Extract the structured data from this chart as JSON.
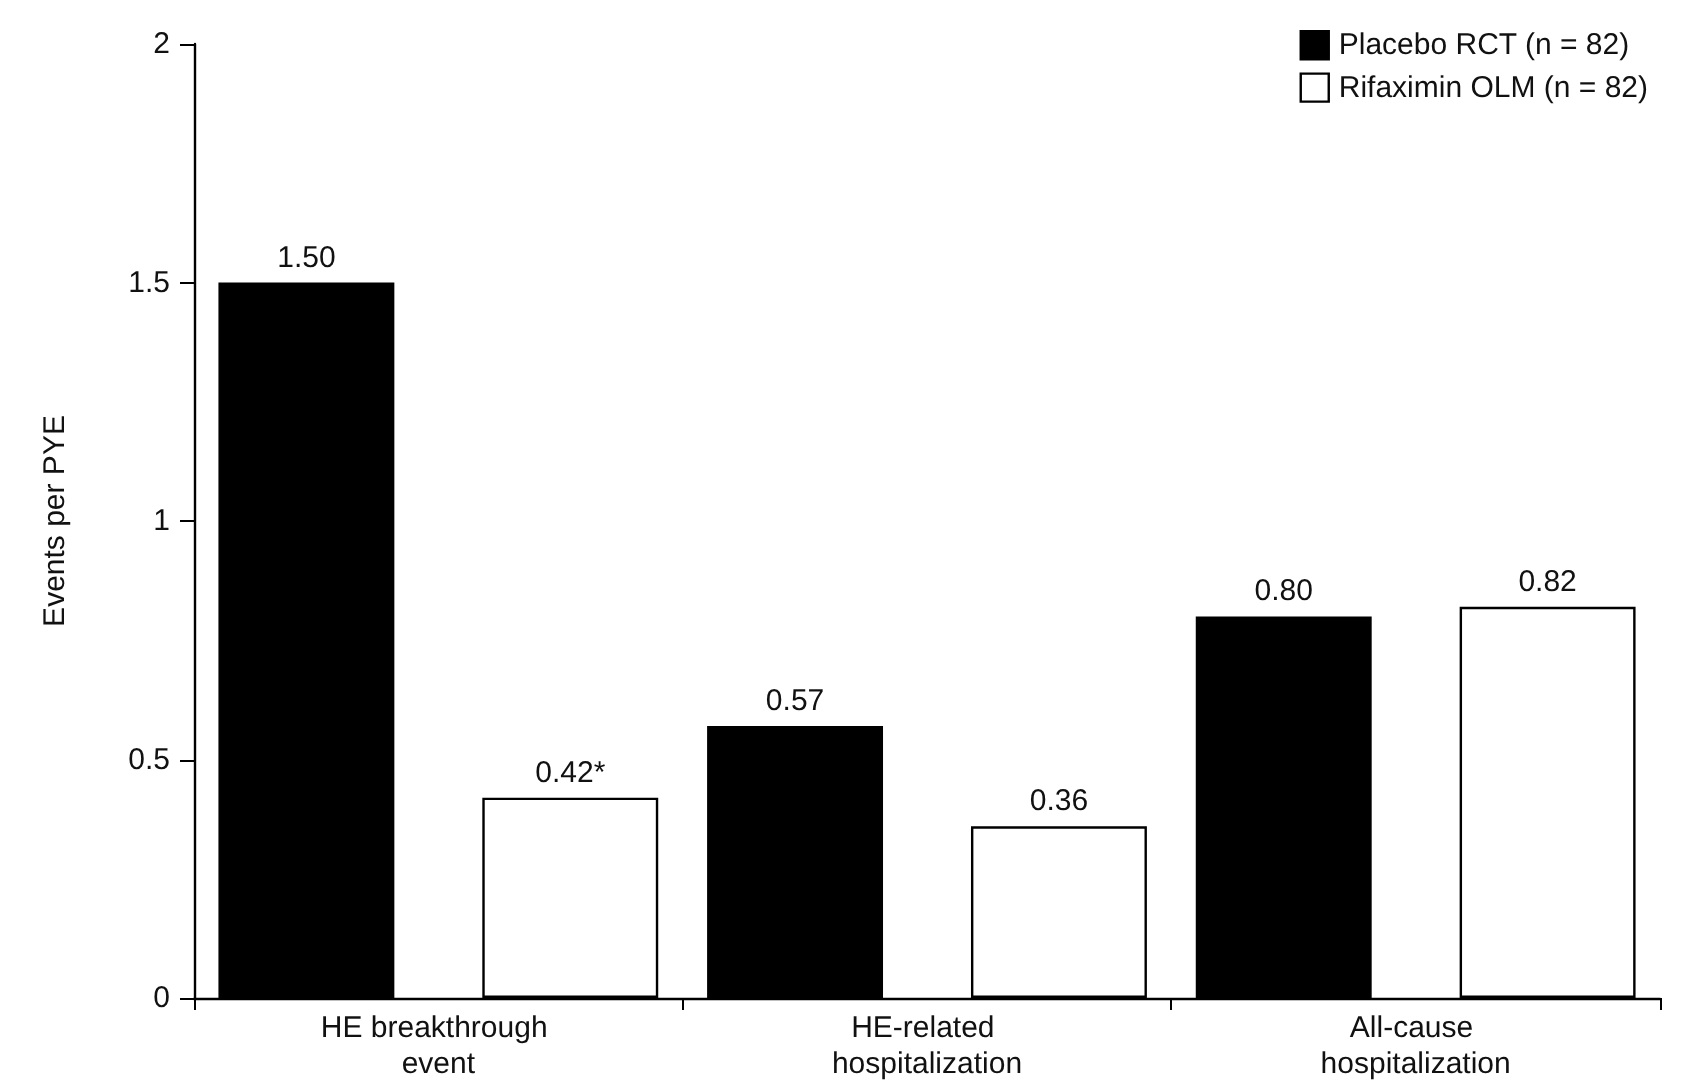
{
  "chart_data": {
    "type": "bar",
    "ylabel": "Events per PYE",
    "categories": [
      "HE breakthrough event",
      "HE-related hospitalization",
      "All-cause hospitalization"
    ],
    "series": [
      {
        "name": "Placebo RCT (n = 82)",
        "color": "#000000",
        "values": [
          1.5,
          0.57,
          0.8
        ],
        "value_labels": [
          "1.50",
          "0.57",
          "0.80"
        ]
      },
      {
        "name": "Rifaximin OLM (n = 82)",
        "color": "#ffffff",
        "values": [
          0.42,
          0.36,
          0.82
        ],
        "value_labels": [
          "0.42*",
          "0.36",
          "0.82"
        ]
      }
    ],
    "ylim": [
      0,
      2
    ],
    "yticks": [
      0,
      0.5,
      1,
      1.5,
      2
    ],
    "grid": false,
    "legend": "top right"
  }
}
